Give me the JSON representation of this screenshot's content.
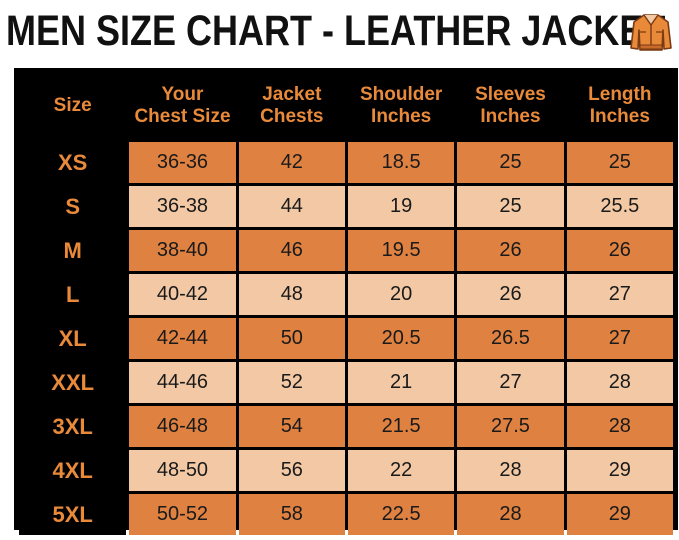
{
  "title": "MEN SIZE CHART - LEATHER JACKET",
  "icon": "leather-jacket-icon",
  "colors": {
    "header_bg": "#000000",
    "header_text": "#e98a3a",
    "row_dark": "#df8141",
    "row_light": "#f3c9a5",
    "title_text": "#111111"
  },
  "headers": {
    "size": [
      "Size"
    ],
    "chest_size": [
      "Your",
      "Chest Size"
    ],
    "jacket_chests": [
      "Jacket",
      "Chests"
    ],
    "shoulder": [
      "Shoulder",
      "Inches"
    ],
    "sleeves": [
      "Sleeves",
      "Inches"
    ],
    "length": [
      "Length",
      "Inches"
    ]
  },
  "rows": [
    {
      "size": "XS",
      "chest_size": "36-36",
      "jacket_chests": "42",
      "shoulder": "18.5",
      "sleeves": "25",
      "length": "25"
    },
    {
      "size": "S",
      "chest_size": "36-38",
      "jacket_chests": "44",
      "shoulder": "19",
      "sleeves": "25",
      "length": "25.5"
    },
    {
      "size": "M",
      "chest_size": "38-40",
      "jacket_chests": "46",
      "shoulder": "19.5",
      "sleeves": "26",
      "length": "26"
    },
    {
      "size": "L",
      "chest_size": "40-42",
      "jacket_chests": "48",
      "shoulder": "20",
      "sleeves": "26",
      "length": "27"
    },
    {
      "size": "XL",
      "chest_size": "42-44",
      "jacket_chests": "50",
      "shoulder": "20.5",
      "sleeves": "26.5",
      "length": "27"
    },
    {
      "size": "XXL",
      "chest_size": "44-46",
      "jacket_chests": "52",
      "shoulder": "21",
      "sleeves": "27",
      "length": "28"
    },
    {
      "size": "3XL",
      "chest_size": "46-48",
      "jacket_chests": "54",
      "shoulder": "21.5",
      "sleeves": "27.5",
      "length": "28"
    },
    {
      "size": "4XL",
      "chest_size": "48-50",
      "jacket_chests": "56",
      "shoulder": "22",
      "sleeves": "28",
      "length": "29"
    },
    {
      "size": "5XL",
      "chest_size": "50-52",
      "jacket_chests": "58",
      "shoulder": "22.5",
      "sleeves": "28",
      "length": "29"
    }
  ]
}
